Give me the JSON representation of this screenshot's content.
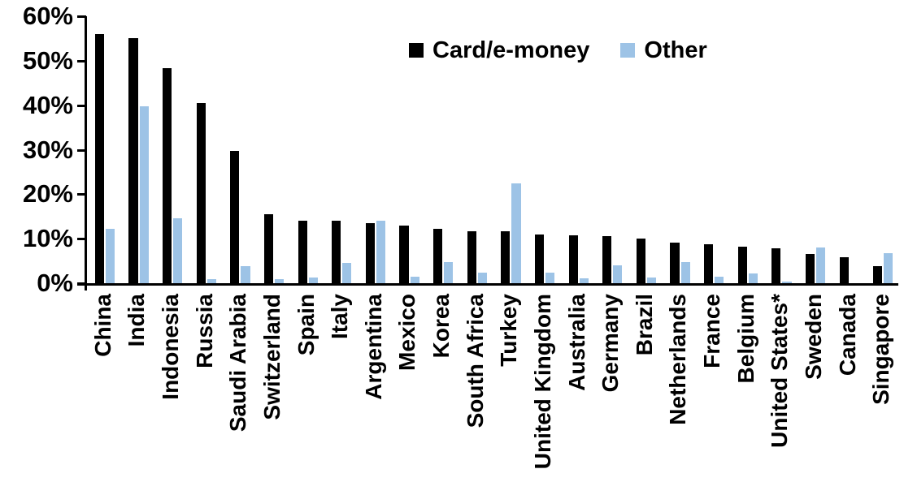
{
  "chart_data": {
    "type": "bar",
    "title": "",
    "xlabel": "",
    "ylabel": "",
    "ylim": [
      0,
      60
    ],
    "y_ticks": [
      "0%",
      "10%",
      "20%",
      "30%",
      "40%",
      "50%",
      "60%"
    ],
    "y_tick_values": [
      0,
      10,
      20,
      30,
      40,
      50,
      60
    ],
    "grid": false,
    "legend_position": "top-center",
    "categories": [
      "China",
      "India",
      "Indonesia",
      "Russia",
      "Saudi Arabia",
      "Switzerland",
      "Spain",
      "Italy",
      "Argentina",
      "Mexico",
      "Korea",
      "South Africa",
      "Turkey",
      "United Kingdom",
      "Australia",
      "Germany",
      "Brazil",
      "Netherlands",
      "France",
      "Belgium",
      "United States*",
      "Sweden",
      "Canada",
      "Singapore"
    ],
    "series": [
      {
        "name": "Card/e-money",
        "color": "#000000",
        "values": [
          56.0,
          55.0,
          48.3,
          40.5,
          29.8,
          15.5,
          14.1,
          14.0,
          13.5,
          13.0,
          12.3,
          11.7,
          11.6,
          11.0,
          10.7,
          10.5,
          10.0,
          9.2,
          8.7,
          8.2,
          7.9,
          6.5,
          5.9,
          3.9
        ]
      },
      {
        "name": "Other",
        "color": "#9DC3E6",
        "values": [
          12.2,
          39.7,
          14.6,
          1.0,
          3.9,
          1.0,
          1.2,
          4.6,
          14.0,
          1.4,
          4.7,
          2.4,
          22.5,
          2.3,
          1.1,
          4.0,
          1.2,
          4.8,
          1.5,
          2.1,
          0.3,
          8.1,
          0,
          6.7
        ]
      }
    ],
    "axis_color": "#000000",
    "unit": "%"
  }
}
